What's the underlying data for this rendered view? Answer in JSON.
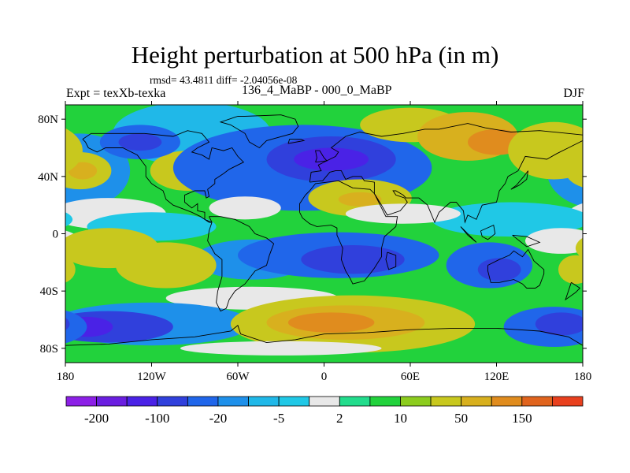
{
  "chart_data": {
    "type": "heatmap",
    "title": "Height perturbation at 500 hPa (in m)",
    "stats_line": "rmsd= 43.4811 diff= -2.04056e-08",
    "left_label": "Expt = texXb-texka",
    "center_label": "136_4_MaBP - 000_0_MaBP",
    "right_label": "DJF",
    "xlim": [
      -180,
      180
    ],
    "ylim": [
      -90,
      90
    ],
    "x_ticks": [
      {
        "value": -180,
        "label": "180"
      },
      {
        "value": -120,
        "label": "120W"
      },
      {
        "value": -60,
        "label": "60W"
      },
      {
        "value": 0,
        "label": "0"
      },
      {
        "value": 60,
        "label": "60E"
      },
      {
        "value": 120,
        "label": "120E"
      },
      {
        "value": 180,
        "label": "180"
      }
    ],
    "y_ticks": [
      {
        "value": 80,
        "label": "80N"
      },
      {
        "value": 40,
        "label": "40N"
      },
      {
        "value": 0,
        "label": "0"
      },
      {
        "value": -40,
        "label": "40S"
      },
      {
        "value": -80,
        "label": "80S"
      }
    ],
    "colorbar": {
      "colors": [
        "#8c20e6",
        "#6a1ee0",
        "#4a22e6",
        "#3040dc",
        "#2066ea",
        "#1e90ea",
        "#20b8e8",
        "#20c8e6",
        "#e8e8e8",
        "#22dc8c",
        "#22d23c",
        "#8ccc1e",
        "#c8c81e",
        "#d8b01e",
        "#e08c1e",
        "#e0641e",
        "#e8401e"
      ],
      "labels": [
        {
          "after": 1,
          "text": "-200"
        },
        {
          "after": 3,
          "text": "-100"
        },
        {
          "after": 5,
          "text": "-20"
        },
        {
          "after": 7,
          "text": "-5"
        },
        {
          "after": 9,
          "text": "2"
        },
        {
          "after": 11,
          "text": "10"
        },
        {
          "after": 13,
          "text": "50"
        },
        {
          "after": 15,
          "text": "150"
        }
      ]
    },
    "background_level": 10,
    "regions": [
      {
        "level": 5,
        "cx": -170,
        "cy": 44,
        "rx": 35,
        "ry": 26
      },
      {
        "level": 6,
        "cx": -92,
        "cy": 70,
        "rx": 55,
        "ry": 22
      },
      {
        "level": 5,
        "cx": -70,
        "cy": 54,
        "rx": 22,
        "ry": 12
      },
      {
        "level": 12,
        "cx": -95,
        "cy": 44,
        "rx": 26,
        "ry": 14
      },
      {
        "level": 13,
        "cx": -88,
        "cy": 44,
        "rx": 14,
        "ry": 8
      },
      {
        "level": 12,
        "cx": -170,
        "cy": 44,
        "rx": 22,
        "ry": 13
      },
      {
        "level": 13,
        "cx": -168,
        "cy": 44,
        "rx": 10,
        "ry": 6
      },
      {
        "level": 4,
        "cx": -128,
        "cy": 64,
        "rx": 28,
        "ry": 12
      },
      {
        "level": 3,
        "cx": -128,
        "cy": 64,
        "rx": 15,
        "ry": 6
      },
      {
        "level": 4,
        "cx": -15,
        "cy": 46,
        "rx": 90,
        "ry": 30
      },
      {
        "level": 3,
        "cx": 5,
        "cy": 52,
        "rx": 45,
        "ry": 16
      },
      {
        "level": 2,
        "cx": 5,
        "cy": 52,
        "rx": 26,
        "ry": 8
      },
      {
        "level": 12,
        "cx": 60,
        "cy": 76,
        "rx": 35,
        "ry": 12
      },
      {
        "level": 13,
        "cx": 100,
        "cy": 68,
        "rx": 35,
        "ry": 17
      },
      {
        "level": 14,
        "cx": 120,
        "cy": 64,
        "rx": 20,
        "ry": 9
      },
      {
        "level": 12,
        "cx": 160,
        "cy": 58,
        "rx": 32,
        "ry": 20
      },
      {
        "level": 12,
        "cx": 25,
        "cy": 25,
        "rx": 36,
        "ry": 13
      },
      {
        "level": 13,
        "cx": 25,
        "cy": 24,
        "rx": 15,
        "ry": 5
      },
      {
        "level": 8,
        "cx": -150,
        "cy": 14,
        "rx": 40,
        "ry": 11
      },
      {
        "level": 8,
        "cx": -55,
        "cy": 18,
        "rx": 25,
        "ry": 8
      },
      {
        "level": 7,
        "cx": -120,
        "cy": 5,
        "rx": 45,
        "ry": 10
      },
      {
        "level": 7,
        "cx": 130,
        "cy": 10,
        "rx": 55,
        "ry": 12
      },
      {
        "level": 8,
        "cx": 55,
        "cy": 14,
        "rx": 40,
        "ry": 7
      },
      {
        "level": 8,
        "cx": 165,
        "cy": -5,
        "rx": 25,
        "ry": 9
      },
      {
        "level": 5,
        "cx": -50,
        "cy": -18,
        "rx": 40,
        "ry": 14
      },
      {
        "level": 4,
        "cx": 10,
        "cy": -15,
        "rx": 70,
        "ry": 16
      },
      {
        "level": 3,
        "cx": 20,
        "cy": -18,
        "rx": 36,
        "ry": 10
      },
      {
        "level": 4,
        "cx": 115,
        "cy": -22,
        "rx": 30,
        "ry": 16
      },
      {
        "level": 3,
        "cx": 122,
        "cy": -25,
        "rx": 15,
        "ry": 8
      },
      {
        "level": 12,
        "cx": -150,
        "cy": -10,
        "rx": 35,
        "ry": 14
      },
      {
        "level": 12,
        "cx": -110,
        "cy": -22,
        "rx": 35,
        "ry": 16
      },
      {
        "level": 12,
        "cx": 175,
        "cy": -25,
        "rx": 12,
        "ry": 10
      },
      {
        "level": 8,
        "cx": -50,
        "cy": -45,
        "rx": 60,
        "ry": 8
      },
      {
        "level": 5,
        "cx": -120,
        "cy": -63,
        "rx": 70,
        "ry": 15
      },
      {
        "level": 3,
        "cx": -150,
        "cy": -65,
        "rx": 45,
        "ry": 11
      },
      {
        "level": 2,
        "cx": -165,
        "cy": -65,
        "rx": 18,
        "ry": 7
      },
      {
        "level": 12,
        "cx": 20,
        "cy": -63,
        "rx": 85,
        "ry": 20
      },
      {
        "level": 13,
        "cx": 15,
        "cy": -62,
        "rx": 55,
        "ry": 12
      },
      {
        "level": 14,
        "cx": 5,
        "cy": -62,
        "rx": 30,
        "ry": 7
      },
      {
        "level": 4,
        "cx": 160,
        "cy": -65,
        "rx": 35,
        "ry": 14
      },
      {
        "level": 3,
        "cx": 165,
        "cy": -63,
        "rx": 18,
        "ry": 8
      },
      {
        "level": 8,
        "cx": -30,
        "cy": -80,
        "rx": 70,
        "ry": 5
      }
    ],
    "coastlines": [
      [
        [
          -168,
          66
        ],
        [
          -162,
          70
        ],
        [
          -140,
          70
        ],
        [
          -125,
          70
        ],
        [
          -105,
          68
        ],
        [
          -95,
          72
        ],
        [
          -85,
          70
        ],
        [
          -80,
          64
        ],
        [
          -88,
          60
        ],
        [
          -92,
          57
        ],
        [
          -85,
          55
        ],
        [
          -80,
          52
        ],
        [
          -78,
          60
        ],
        [
          -70,
          58
        ],
        [
          -64,
          60
        ],
        [
          -60,
          54
        ],
        [
          -56,
          50
        ],
        [
          -66,
          45
        ],
        [
          -70,
          42
        ],
        [
          -76,
          38
        ],
        [
          -76,
          35
        ],
        [
          -81,
          31
        ],
        [
          -80,
          26
        ],
        [
          -82,
          25
        ],
        [
          -83,
          30
        ],
        [
          -90,
          30
        ],
        [
          -97,
          27
        ],
        [
          -97,
          22
        ],
        [
          -92,
          18
        ],
        [
          -88,
          21
        ],
        [
          -88,
          16
        ],
        [
          -83,
          15
        ],
        [
          -83,
          10
        ],
        [
          -78,
          8
        ],
        [
          -80,
          8
        ],
        [
          -86,
          12
        ],
        [
          -92,
          15
        ],
        [
          -105,
          20
        ],
        [
          -110,
          24
        ],
        [
          -112,
          30
        ],
        [
          -117,
          33
        ],
        [
          -120,
          35
        ],
        [
          -124,
          40
        ],
        [
          -124,
          47
        ],
        [
          -130,
          55
        ],
        [
          -140,
          60
        ],
        [
          -152,
          60
        ],
        [
          -158,
          57
        ],
        [
          -164,
          60
        ],
        [
          -166,
          64
        ],
        [
          -168,
          66
        ]
      ],
      [
        [
          -80,
          12
        ],
        [
          -72,
          12
        ],
        [
          -62,
          10
        ],
        [
          -52,
          5
        ],
        [
          -48,
          0
        ],
        [
          -40,
          -3
        ],
        [
          -35,
          -7
        ],
        [
          -38,
          -15
        ],
        [
          -40,
          -22
        ],
        [
          -48,
          -26
        ],
        [
          -55,
          -35
        ],
        [
          -62,
          -40
        ],
        [
          -66,
          -46
        ],
        [
          -68,
          -52
        ],
        [
          -72,
          -54
        ],
        [
          -75,
          -48
        ],
        [
          -74,
          -40
        ],
        [
          -71,
          -30
        ],
        [
          -71,
          -18
        ],
        [
          -76,
          -14
        ],
        [
          -81,
          -5
        ],
        [
          -80,
          2
        ],
        [
          -78,
          8
        ],
        [
          -80,
          12
        ]
      ],
      [
        [
          -55,
          82
        ],
        [
          -30,
          83
        ],
        [
          -20,
          80
        ],
        [
          -18,
          75
        ],
        [
          -22,
          70
        ],
        [
          -40,
          65
        ],
        [
          -45,
          60
        ],
        [
          -52,
          64
        ],
        [
          -55,
          70
        ],
        [
          -65,
          76
        ],
        [
          -72,
          78
        ],
        [
          -60,
          82
        ],
        [
          -55,
          82
        ]
      ],
      [
        [
          -17,
          15
        ],
        [
          -17,
          21
        ],
        [
          -13,
          27
        ],
        [
          -10,
          30
        ],
        [
          -6,
          35
        ],
        [
          10,
          37
        ],
        [
          20,
          32
        ],
        [
          32,
          31
        ],
        [
          35,
          28
        ],
        [
          43,
          12
        ],
        [
          51,
          12
        ],
        [
          50,
          5
        ],
        [
          42,
          -2
        ],
        [
          40,
          -10
        ],
        [
          40,
          -16
        ],
        [
          35,
          -24
        ],
        [
          32,
          -28
        ],
        [
          28,
          -33
        ],
        [
          20,
          -35
        ],
        [
          18,
          -31
        ],
        [
          15,
          -26
        ],
        [
          12,
          -18
        ],
        [
          13,
          -10
        ],
        [
          9,
          -1
        ],
        [
          9,
          4
        ],
        [
          5,
          6
        ],
        [
          -5,
          5
        ],
        [
          -10,
          7
        ],
        [
          -15,
          11
        ],
        [
          -17,
          15
        ]
      ],
      [
        [
          -10,
          36
        ],
        [
          -9,
          43
        ],
        [
          -2,
          44
        ],
        [
          -4,
          48
        ],
        [
          2,
          51
        ],
        [
          8,
          54
        ],
        [
          10,
          57
        ],
        [
          5,
          60
        ],
        [
          10,
          64
        ],
        [
          15,
          68
        ],
        [
          25,
          71
        ],
        [
          40,
          68
        ],
        [
          55,
          70
        ],
        [
          70,
          73
        ],
        [
          80,
          73
        ],
        [
          100,
          77
        ],
        [
          112,
          74
        ],
        [
          130,
          71
        ],
        [
          150,
          72
        ],
        [
          170,
          70
        ],
        [
          180,
          69
        ],
        [
          180,
          65
        ],
        [
          170,
          60
        ],
        [
          162,
          56
        ],
        [
          155,
          52
        ],
        [
          140,
          54
        ],
        [
          135,
          44
        ],
        [
          128,
          40
        ],
        [
          126,
          35
        ],
        [
          122,
          30
        ],
        [
          120,
          22
        ],
        [
          110,
          20
        ],
        [
          106,
          10
        ],
        [
          100,
          13
        ],
        [
          98,
          8
        ],
        [
          97,
          16
        ],
        [
          92,
          22
        ],
        [
          88,
          22
        ],
        [
          80,
          15
        ],
        [
          77,
          8
        ],
        [
          72,
          20
        ],
        [
          66,
          25
        ],
        [
          57,
          25
        ],
        [
          55,
          27
        ],
        [
          50,
          30
        ],
        [
          48,
          30
        ],
        [
          50,
          27
        ],
        [
          56,
          25
        ],
        [
          58,
          22
        ],
        [
          53,
          16
        ],
        [
          44,
          13
        ],
        [
          40,
          20
        ],
        [
          35,
          28
        ],
        [
          35,
          36
        ],
        [
          28,
          37
        ],
        [
          26,
          40
        ],
        [
          20,
          40
        ],
        [
          15,
          38
        ],
        [
          12,
          44
        ],
        [
          8,
          44
        ],
        [
          4,
          43
        ],
        [
          -1,
          37
        ],
        [
          -10,
          36
        ]
      ],
      [
        [
          114,
          -22
        ],
        [
          114,
          -26
        ],
        [
          116,
          -34
        ],
        [
          122,
          -34
        ],
        [
          132,
          -32
        ],
        [
          138,
          -35
        ],
        [
          141,
          -38
        ],
        [
          147,
          -38
        ],
        [
          150,
          -36
        ],
        [
          153,
          -28
        ],
        [
          153,
          -25
        ],
        [
          146,
          -19
        ],
        [
          142,
          -11
        ],
        [
          138,
          -16
        ],
        [
          132,
          -12
        ],
        [
          129,
          -15
        ],
        [
          122,
          -18
        ],
        [
          114,
          -22
        ]
      ],
      [
        [
          -180,
          -78
        ],
        [
          -150,
          -77
        ],
        [
          -120,
          -74
        ],
        [
          -90,
          -72
        ],
        [
          -65,
          -68
        ],
        [
          -60,
          -64
        ],
        [
          -58,
          -70
        ],
        [
          -40,
          -76
        ],
        [
          -20,
          -74
        ],
        [
          0,
          -70
        ],
        [
          30,
          -69
        ],
        [
          60,
          -67
        ],
        [
          90,
          -66
        ],
        [
          120,
          -66
        ],
        [
          150,
          -68
        ],
        [
          170,
          -72
        ],
        [
          180,
          -78
        ]
      ],
      [
        [
          -6,
          50
        ],
        [
          -5,
          53
        ],
        [
          -6,
          58
        ],
        [
          -3,
          58
        ],
        [
          0,
          53
        ],
        [
          2,
          51
        ],
        [
          -6,
          50
        ]
      ],
      [
        [
          130,
          31
        ],
        [
          136,
          34
        ],
        [
          141,
          38
        ],
        [
          142,
          44
        ],
        [
          139,
          40
        ],
        [
          134,
          34
        ],
        [
          130,
          31
        ]
      ],
      [
        [
          95,
          5
        ],
        [
          105,
          -5
        ],
        [
          106,
          -6
        ],
        [
          100,
          -1
        ],
        [
          95,
          5
        ]
      ],
      [
        [
          109,
          2
        ],
        [
          118,
          6
        ],
        [
          119,
          0
        ],
        [
          114,
          -4
        ],
        [
          110,
          -2
        ],
        [
          109,
          2
        ]
      ],
      [
        [
          131,
          -1
        ],
        [
          141,
          -2
        ],
        [
          150,
          -6
        ],
        [
          141,
          -9
        ],
        [
          136,
          -5
        ],
        [
          131,
          -1
        ]
      ],
      [
        [
          44,
          -13
        ],
        [
          50,
          -15
        ],
        [
          50,
          -23
        ],
        [
          45,
          -25
        ],
        [
          43,
          -18
        ],
        [
          44,
          -13
        ]
      ],
      [
        [
          172,
          -34
        ],
        [
          178,
          -38
        ],
        [
          175,
          -41
        ],
        [
          168,
          -46
        ],
        [
          172,
          -34
        ]
      ],
      [
        [
          -25,
          63
        ],
        [
          -14,
          65
        ],
        [
          -16,
          66
        ],
        [
          -24,
          66
        ],
        [
          -25,
          63
        ]
      ]
    ]
  }
}
